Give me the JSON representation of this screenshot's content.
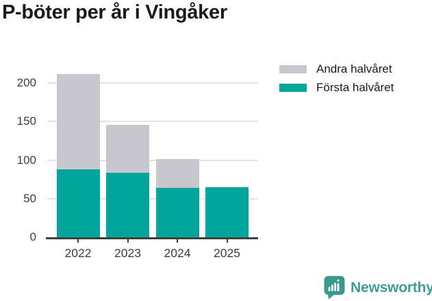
{
  "title": "P-böter per år i Vingåker",
  "legend": {
    "items": [
      {
        "label": "Andra halvåret",
        "color": "#c8c6ce"
      },
      {
        "label": "Första halvåret",
        "color": "#00a69b"
      }
    ]
  },
  "chart_data": {
    "type": "bar",
    "stacked": true,
    "title": "P-böter per år i Vingåker",
    "categories": [
      "2022",
      "2023",
      "2024",
      "2025"
    ],
    "series": [
      {
        "name": "Första halvåret",
        "color": "#00a69b",
        "values": [
          88,
          84,
          64,
          65
        ]
      },
      {
        "name": "Andra halvåret",
        "color": "#c8c6ce",
        "values": [
          124,
          62,
          37,
          0
        ]
      }
    ],
    "xlabel": "",
    "ylabel": "",
    "ylim": [
      0,
      220
    ],
    "yticks": [
      0,
      50,
      100,
      150,
      200
    ],
    "grid": true,
    "legend_position": "top-right"
  },
  "branding": {
    "logo_text": "Newsworthy",
    "logo_color": "#3f9d92",
    "icon_color": "#3a9a8e"
  },
  "colors": {
    "axis": "#3f3f3f",
    "grid": "#e2e2e2",
    "background": "#ffffff"
  }
}
